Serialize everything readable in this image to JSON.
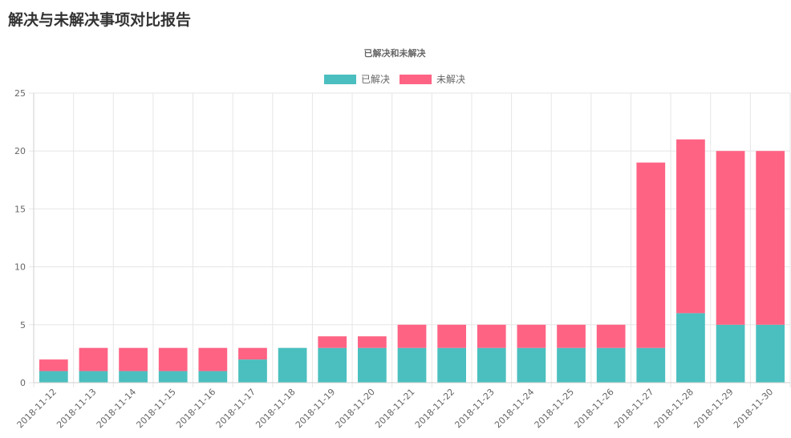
{
  "page": {
    "title": "解决与未解决事项对比报告"
  },
  "chart_data": {
    "type": "bar",
    "stacked": true,
    "title": "已解决和未解决",
    "legend_position": "top",
    "grid": true,
    "ylim": [
      0,
      25
    ],
    "yticks": [
      0,
      5,
      10,
      15,
      20,
      25
    ],
    "categories": [
      "2018-11-12",
      "2018-11-13",
      "2018-11-14",
      "2018-11-15",
      "2018-11-16",
      "2018-11-17",
      "2018-11-18",
      "2018-11-19",
      "2018-11-20",
      "2018-11-21",
      "2018-11-22",
      "2018-11-23",
      "2018-11-24",
      "2018-11-25",
      "2018-11-26",
      "2018-11-27",
      "2018-11-28",
      "2018-11-29",
      "2018-11-30"
    ],
    "series": [
      {
        "name": "已解决",
        "color": "#4bbfbf",
        "values": [
          1,
          1,
          1,
          1,
          1,
          2,
          3,
          3,
          3,
          3,
          3,
          3,
          3,
          3,
          3,
          3,
          6,
          5,
          5
        ]
      },
      {
        "name": "未解决",
        "color": "#ff6384",
        "values": [
          1,
          2,
          2,
          2,
          2,
          1,
          0,
          1,
          1,
          2,
          2,
          2,
          2,
          2,
          2,
          16,
          15,
          15,
          15
        ]
      }
    ]
  }
}
